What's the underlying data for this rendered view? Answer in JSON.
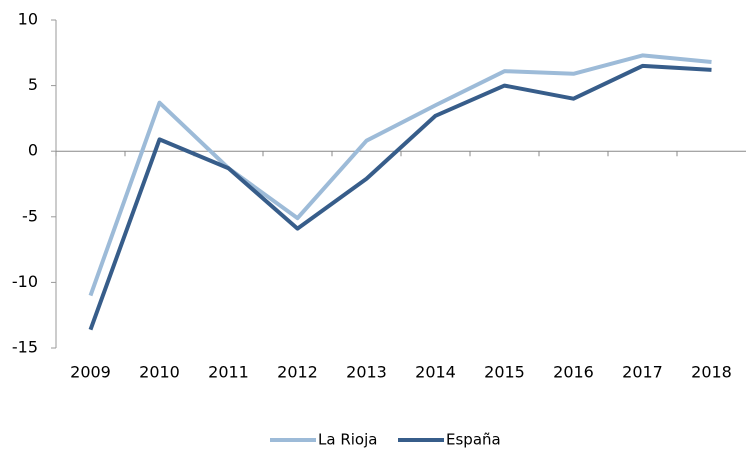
{
  "chart_data": {
    "type": "line",
    "categories": [
      "2009",
      "2010",
      "2011",
      "2012",
      "2013",
      "2014",
      "2015",
      "2016",
      "2017",
      "2018"
    ],
    "series": [
      {
        "name": "La Rioja",
        "color": "#9dbbd8",
        "values": [
          -11.0,
          3.7,
          -1.3,
          -5.1,
          0.8,
          3.5,
          6.1,
          5.9,
          7.3,
          6.8
        ]
      },
      {
        "name": "España",
        "color": "#375d8a",
        "values": [
          -13.6,
          0.9,
          -1.3,
          -5.9,
          -2.1,
          2.7,
          5.0,
          4.0,
          6.5,
          6.2
        ]
      }
    ],
    "ylim": [
      -15,
      10
    ],
    "yticks": [
      -15,
      -10,
      -5,
      0,
      5,
      10
    ],
    "legend": "bottom"
  }
}
